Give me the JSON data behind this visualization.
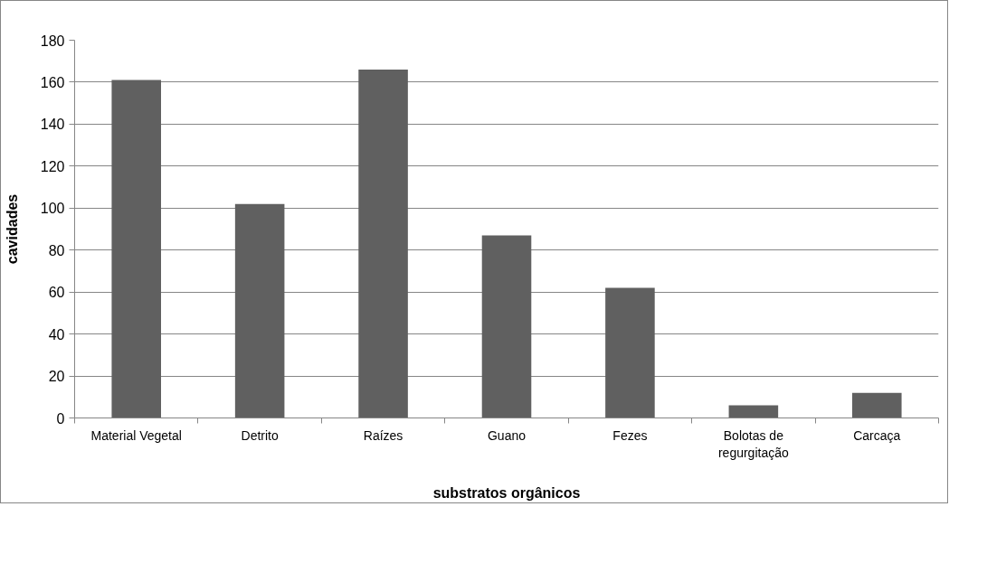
{
  "chart_data": {
    "type": "bar",
    "xlabel": "substratos orgânicos",
    "ylabel": "cavidades",
    "categories": [
      "Material Vegetal",
      "Detrito",
      "Raízes",
      "Guano",
      "Fezes",
      "Bolotas de regurgitação",
      "Carcaça"
    ],
    "values": [
      161,
      102,
      166,
      87,
      62,
      6,
      12
    ],
    "color": "#606060",
    "ylim": [
      0,
      180
    ],
    "yticks": [
      0,
      20,
      40,
      60,
      80,
      100,
      120,
      140,
      160,
      180
    ],
    "grid": "y"
  }
}
